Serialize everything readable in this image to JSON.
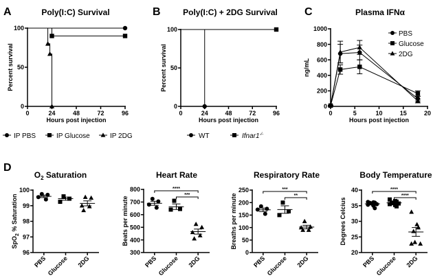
{
  "chart_data": [
    {
      "id": "A",
      "panel_letter": "A",
      "type": "line",
      "subtype": "kaplan-meier",
      "title": "Poly(I:C) Survival",
      "xlabel": "Hours post injection",
      "ylabel": "Percent survival",
      "xlim": [
        0,
        96
      ],
      "ylim": [
        0,
        100
      ],
      "xticks": [
        0,
        24,
        48,
        72,
        96
      ],
      "yticks": [
        0,
        50,
        100
      ],
      "legend_position": "bottom",
      "series": [
        {
          "name": "IP PBS",
          "marker": "circle",
          "steps": [
            [
              0,
              100
            ],
            [
              96,
              100
            ]
          ],
          "points": [
            [
              96,
              100
            ]
          ]
        },
        {
          "name": "IP Glucose",
          "marker": "square",
          "steps": [
            [
              0,
              100
            ],
            [
              24,
              100
            ],
            [
              24,
              90
            ],
            [
              96,
              90
            ]
          ],
          "points": [
            [
              24,
              90
            ],
            [
              96,
              90
            ]
          ]
        },
        {
          "name": "IP 2DG",
          "marker": "triangle",
          "steps": [
            [
              0,
              100
            ],
            [
              20,
              100
            ],
            [
              20,
              80
            ],
            [
              22,
              80
            ],
            [
              22,
              67
            ],
            [
              24,
              67
            ],
            [
              24,
              0
            ]
          ],
          "points": [
            [
              20,
              80
            ],
            [
              22,
              67
            ],
            [
              24,
              0
            ]
          ]
        }
      ]
    },
    {
      "id": "B",
      "panel_letter": "B",
      "type": "line",
      "subtype": "kaplan-meier",
      "title": "Poly(I:C) + 2DG Survival",
      "xlabel": "Hours post injection",
      "ylabel": "Percent survival",
      "xlim": [
        0,
        96
      ],
      "ylim": [
        0,
        100
      ],
      "xticks": [
        0,
        24,
        48,
        72,
        96
      ],
      "yticks": [
        0,
        50,
        100
      ],
      "legend_position": "bottom",
      "series": [
        {
          "name": "WT",
          "marker": "circle",
          "italic": false,
          "superscript": "",
          "steps": [
            [
              0,
              100
            ],
            [
              24,
              100
            ],
            [
              24,
              0
            ]
          ],
          "points": [
            [
              24,
              0
            ]
          ]
        },
        {
          "name": "Ifnar1",
          "marker": "square",
          "italic": true,
          "superscript": "-/-",
          "steps": [
            [
              0,
              100
            ],
            [
              96,
              100
            ]
          ],
          "points": [
            [
              96,
              100
            ]
          ]
        }
      ]
    },
    {
      "id": "C",
      "panel_letter": "C",
      "type": "line",
      "title": "Plasma IFNα",
      "xlabel": "Hours post injection",
      "ylabel": "ng/mL",
      "xlim": [
        0,
        20
      ],
      "ylim": [
        0,
        1000
      ],
      "xticks": [
        0,
        5,
        10,
        15,
        20
      ],
      "yticks": [
        0,
        200,
        400,
        600,
        800,
        1000
      ],
      "legend_position": "top-right",
      "x": [
        0,
        2,
        6,
        18
      ],
      "series": [
        {
          "name": "PBS",
          "marker": "circle",
          "values": [
            10,
            680,
            695,
            100
          ],
          "errors": [
            5,
            120,
            95,
            30
          ]
        },
        {
          "name": "Glucose",
          "marker": "square",
          "values": [
            10,
            475,
            510,
            165
          ],
          "errors": [
            5,
            60,
            90,
            35
          ]
        },
        {
          "name": "2DG",
          "marker": "triangle",
          "values": [
            10,
            700,
            760,
            70
          ],
          "errors": [
            5,
            140,
            90,
            25
          ]
        }
      ]
    },
    {
      "id": "D1",
      "panel_letter": "D",
      "type": "scatter",
      "title": "O2 Saturation",
      "title_main": "O",
      "title_sub": "2",
      "title_rest": " Saturation",
      "ylabel": "SpO2 % Saturation",
      "ylabel_parts": [
        "SpO",
        "2",
        " % Saturation"
      ],
      "categories": [
        "PBS",
        "Glucose",
        "2DG"
      ],
      "ylim": [
        96,
        100
      ],
      "yticks": [
        96,
        97,
        98,
        99,
        100
      ],
      "groups": [
        {
          "name": "PBS",
          "marker": "circle",
          "points": [
            99.75,
            99.7,
            99.55,
            99.4
          ],
          "mean": 99.6,
          "sem": 0.08
        },
        {
          "name": "Glucose",
          "marker": "square",
          "points": [
            99.6,
            99.45,
            99.25
          ],
          "mean": 99.45,
          "sem": 0.1
        },
        {
          "name": "2DG",
          "marker": "triangle",
          "points": [
            99.55,
            99.5,
            99.0,
            98.95,
            98.7
          ],
          "mean": 99.15,
          "sem": 0.16
        }
      ],
      "significance": []
    },
    {
      "id": "D2",
      "type": "scatter",
      "title": "Heart Rate",
      "ylabel": "Beats per minute",
      "categories": [
        "PBS",
        "Glucose",
        "2DG"
      ],
      "ylim": [
        300,
        800
      ],
      "yticks": [
        300,
        400,
        500,
        600,
        700,
        800
      ],
      "groups": [
        {
          "name": "PBS",
          "marker": "circle",
          "points": [
            725,
            705,
            680,
            655
          ],
          "mean": 690,
          "sem": 16
        },
        {
          "name": "Glucose",
          "marker": "square",
          "points": [
            710,
            645,
            640
          ],
          "mean": 663,
          "sem": 22
        },
        {
          "name": "2DG",
          "marker": "triangle",
          "points": [
            525,
            500,
            460,
            435,
            410
          ],
          "mean": 466,
          "sem": 20
        }
      ],
      "significance": [
        {
          "from": "PBS",
          "to": "2DG",
          "label": "****"
        },
        {
          "from": "Glucose",
          "to": "2DG",
          "label": "***"
        }
      ]
    },
    {
      "id": "D3",
      "type": "scatter",
      "title": "Respiratory Rate",
      "ylabel": "Breaths per minute",
      "categories": [
        "PBS",
        "Glucose",
        "2DG"
      ],
      "ylim": [
        0,
        250
      ],
      "yticks": [
        0,
        50,
        100,
        150,
        200,
        250
      ],
      "groups": [
        {
          "name": "PBS",
          "marker": "circle",
          "points": [
            185,
            175,
            172,
            155
          ],
          "mean": 171,
          "sem": 7
        },
        {
          "name": "Glucose",
          "marker": "square",
          "points": [
            200,
            165,
            150
          ],
          "mean": 172,
          "sem": 15
        },
        {
          "name": "2DG",
          "marker": "triangle",
          "points": [
            125,
            103,
            100,
            90,
            90
          ],
          "mean": 102,
          "sem": 7
        }
      ],
      "significance": [
        {
          "from": "PBS",
          "to": "2DG",
          "label": "***"
        },
        {
          "from": "Glucose",
          "to": "2DG",
          "label": "**"
        }
      ]
    },
    {
      "id": "D4",
      "type": "scatter",
      "title": "Body Temperature",
      "ylabel": "Degrees Celcius",
      "categories": [
        "PBS",
        "Glucose",
        "2DG"
      ],
      "ylim": [
        20,
        40
      ],
      "yticks": [
        20,
        25,
        30,
        35,
        40
      ],
      "groups": [
        {
          "name": "PBS",
          "marker": "circle",
          "points": [
            36.2,
            36.1,
            36.0,
            35.9,
            35.7,
            35.5,
            35.3,
            35.0,
            34.2
          ],
          "mean": 35.6,
          "sem": 0.3
        },
        {
          "name": "Glucose",
          "marker": "square",
          "points": [
            37.0,
            36.5,
            36.3,
            36.0,
            35.8,
            35.7,
            35.5,
            35.2,
            34.8
          ],
          "mean": 35.9,
          "sem": 0.25
        },
        {
          "name": "2DG",
          "marker": "triangle",
          "points": [
            33.0,
            29.0,
            28.0,
            26.8,
            23.3,
            22.8,
            22.8
          ],
          "mean": 26.6,
          "sem": 1.4
        }
      ],
      "significance": [
        {
          "from": "PBS",
          "to": "2DG",
          "label": "****"
        },
        {
          "from": "Glucose",
          "to": "2DG",
          "label": "****"
        }
      ]
    }
  ]
}
